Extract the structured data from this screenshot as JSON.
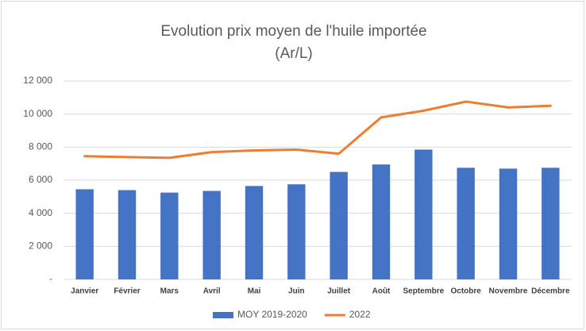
{
  "chart_data": {
    "type": "bar",
    "title": "Evolution prix moyen de l'huile importée",
    "subtitle": "(Ar/L)",
    "categories": [
      "Janvier",
      "Février",
      "Mars",
      "Avril",
      "Mai",
      "Juin",
      "Juillet",
      "Août",
      "Septembre",
      "Octobre",
      "Novembre",
      "Décembre"
    ],
    "series": [
      {
        "name": "MOY 2019-2020",
        "type": "bar",
        "color": "#4472c4",
        "values": [
          5450,
          5400,
          5250,
          5350,
          5650,
          5750,
          6500,
          6950,
          7850,
          6750,
          6700,
          6750
        ]
      },
      {
        "name": "2022",
        "type": "line",
        "color": "#ed7d31",
        "values": [
          7450,
          7400,
          7350,
          7700,
          7800,
          7850,
          7600,
          9800,
          10200,
          10750,
          10400,
          10500
        ]
      }
    ],
    "ylim": [
      0,
      12000
    ],
    "yticks": [
      {
        "value": 0,
        "label": "-"
      },
      {
        "value": 2000,
        "label": "2 000"
      },
      {
        "value": 4000,
        "label": "4 000"
      },
      {
        "value": 6000,
        "label": "6 000"
      },
      {
        "value": 8000,
        "label": "8 000"
      },
      {
        "value": 10000,
        "label": "10 000"
      },
      {
        "value": 12000,
        "label": "12 000"
      }
    ],
    "grid": true,
    "legend": "bottom"
  }
}
